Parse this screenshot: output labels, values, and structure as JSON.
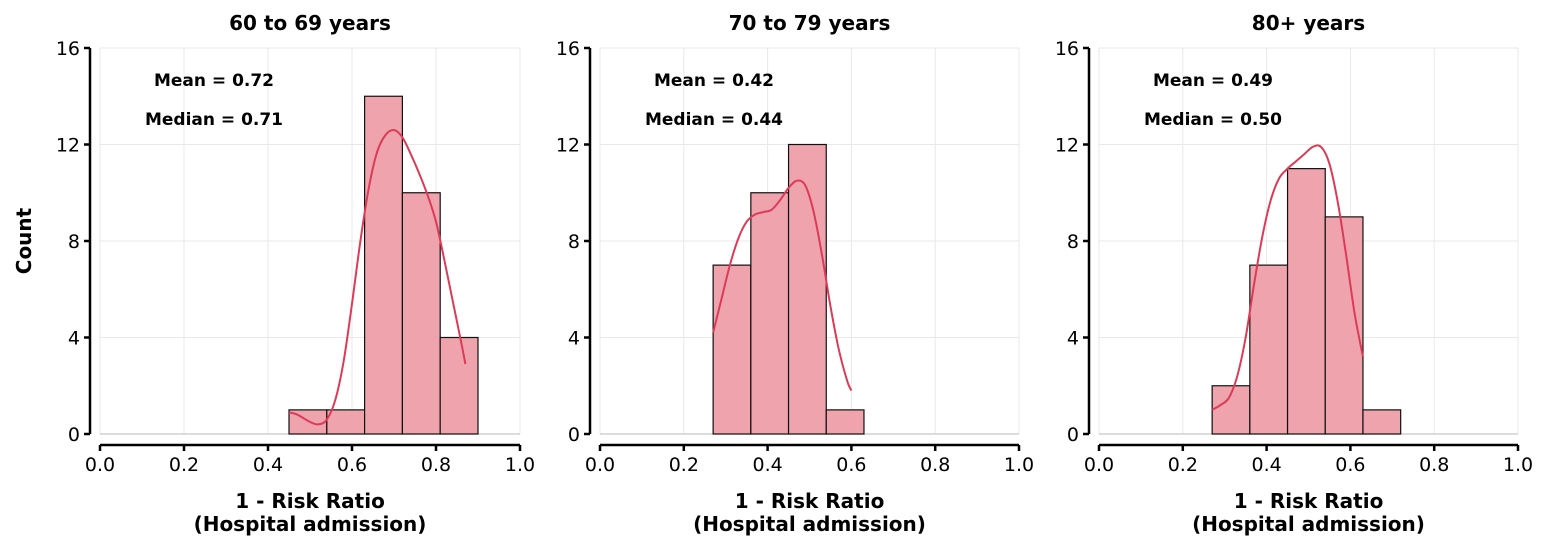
{
  "chart_data": [
    {
      "type": "bar",
      "title": "60 to 69 years",
      "xlabel": [
        "1 - Risk Ratio",
        "(Hospital admission)"
      ],
      "ylabel": "Count",
      "xlim": [
        0.0,
        1.0
      ],
      "ylim": [
        0,
        16
      ],
      "xticks": [
        "0.0",
        "0.2",
        "0.4",
        "0.6",
        "0.8",
        "1.0"
      ],
      "yticks": [
        "0",
        "4",
        "8",
        "12",
        "16"
      ],
      "annotations": [
        "Mean = 0.72",
        "Median = 0.71"
      ],
      "bins": [
        {
          "start": 0.45,
          "end": 0.54,
          "count": 1
        },
        {
          "start": 0.54,
          "end": 0.63,
          "count": 1
        },
        {
          "start": 0.63,
          "end": 0.72,
          "count": 14
        },
        {
          "start": 0.72,
          "end": 0.81,
          "count": 10
        },
        {
          "start": 0.81,
          "end": 0.9,
          "count": 4
        }
      ],
      "kde": {
        "x": [
          0.45,
          0.47,
          0.5,
          0.52,
          0.54,
          0.56,
          0.58,
          0.6,
          0.62,
          0.64,
          0.66,
          0.68,
          0.7,
          0.72,
          0.74,
          0.76,
          0.78,
          0.8,
          0.82,
          0.84,
          0.86,
          0.87
        ],
        "y": [
          0.9,
          0.8,
          0.5,
          0.4,
          0.6,
          1.4,
          3.0,
          5.4,
          8.0,
          10.2,
          11.7,
          12.4,
          12.6,
          12.3,
          11.6,
          10.8,
          9.9,
          8.8,
          7.2,
          5.5,
          3.8,
          2.9
        ]
      },
      "grid": true,
      "colors": {
        "bar": "#eea3ad",
        "kde": "#dc3b57"
      }
    },
    {
      "type": "bar",
      "title": "70 to 79 years",
      "xlabel": [
        "1 - Risk Ratio",
        "(Hospital admission)"
      ],
      "ylabel": "",
      "xlim": [
        0.0,
        1.0
      ],
      "ylim": [
        0,
        16
      ],
      "xticks": [
        "0.0",
        "0.2",
        "0.4",
        "0.6",
        "0.8",
        "1.0"
      ],
      "yticks": [
        "0",
        "4",
        "8",
        "12",
        "16"
      ],
      "annotations": [
        "Mean = 0.42",
        "Median = 0.44"
      ],
      "bins": [
        {
          "start": 0.27,
          "end": 0.36,
          "count": 7
        },
        {
          "start": 0.36,
          "end": 0.45,
          "count": 10
        },
        {
          "start": 0.45,
          "end": 0.54,
          "count": 12
        },
        {
          "start": 0.54,
          "end": 0.63,
          "count": 1
        }
      ],
      "kde": {
        "x": [
          0.27,
          0.29,
          0.31,
          0.33,
          0.35,
          0.37,
          0.39,
          0.41,
          0.43,
          0.45,
          0.47,
          0.49,
          0.51,
          0.53,
          0.55,
          0.57,
          0.59,
          0.6
        ],
        "y": [
          4.2,
          5.6,
          7.0,
          8.1,
          8.8,
          9.1,
          9.2,
          9.3,
          9.7,
          10.2,
          10.5,
          10.3,
          9.2,
          7.4,
          5.3,
          3.5,
          2.2,
          1.8
        ]
      },
      "grid": true,
      "colors": {
        "bar": "#eea3ad",
        "kde": "#dc3b57"
      }
    },
    {
      "type": "bar",
      "title": "80+ years",
      "xlabel": [
        "1 - Risk Ratio",
        "(Hospital admission)"
      ],
      "ylabel": "",
      "xlim": [
        0.0,
        1.0
      ],
      "ylim": [
        0,
        16
      ],
      "xticks": [
        "0.0",
        "0.2",
        "0.4",
        "0.6",
        "0.8",
        "1.0"
      ],
      "yticks": [
        "0",
        "4",
        "8",
        "12",
        "16"
      ],
      "annotations": [
        "Mean = 0.49",
        "Median = 0.50"
      ],
      "bins": [
        {
          "start": 0.27,
          "end": 0.36,
          "count": 2
        },
        {
          "start": 0.36,
          "end": 0.45,
          "count": 7
        },
        {
          "start": 0.45,
          "end": 0.54,
          "count": 11
        },
        {
          "start": 0.54,
          "end": 0.63,
          "count": 9
        },
        {
          "start": 0.63,
          "end": 0.72,
          "count": 1
        }
      ],
      "kde": {
        "x": [
          0.27,
          0.29,
          0.31,
          0.33,
          0.35,
          0.37,
          0.39,
          0.41,
          0.43,
          0.45,
          0.47,
          0.49,
          0.51,
          0.53,
          0.55,
          0.57,
          0.59,
          0.61,
          0.63
        ],
        "y": [
          1.0,
          1.2,
          1.5,
          2.4,
          4.0,
          6.2,
          8.2,
          9.7,
          10.6,
          11.0,
          11.3,
          11.6,
          11.9,
          11.9,
          11.2,
          9.6,
          7.4,
          5.0,
          3.2
        ]
      },
      "grid": true,
      "colors": {
        "bar": "#eea3ad",
        "kde": "#dc3b57"
      }
    }
  ]
}
